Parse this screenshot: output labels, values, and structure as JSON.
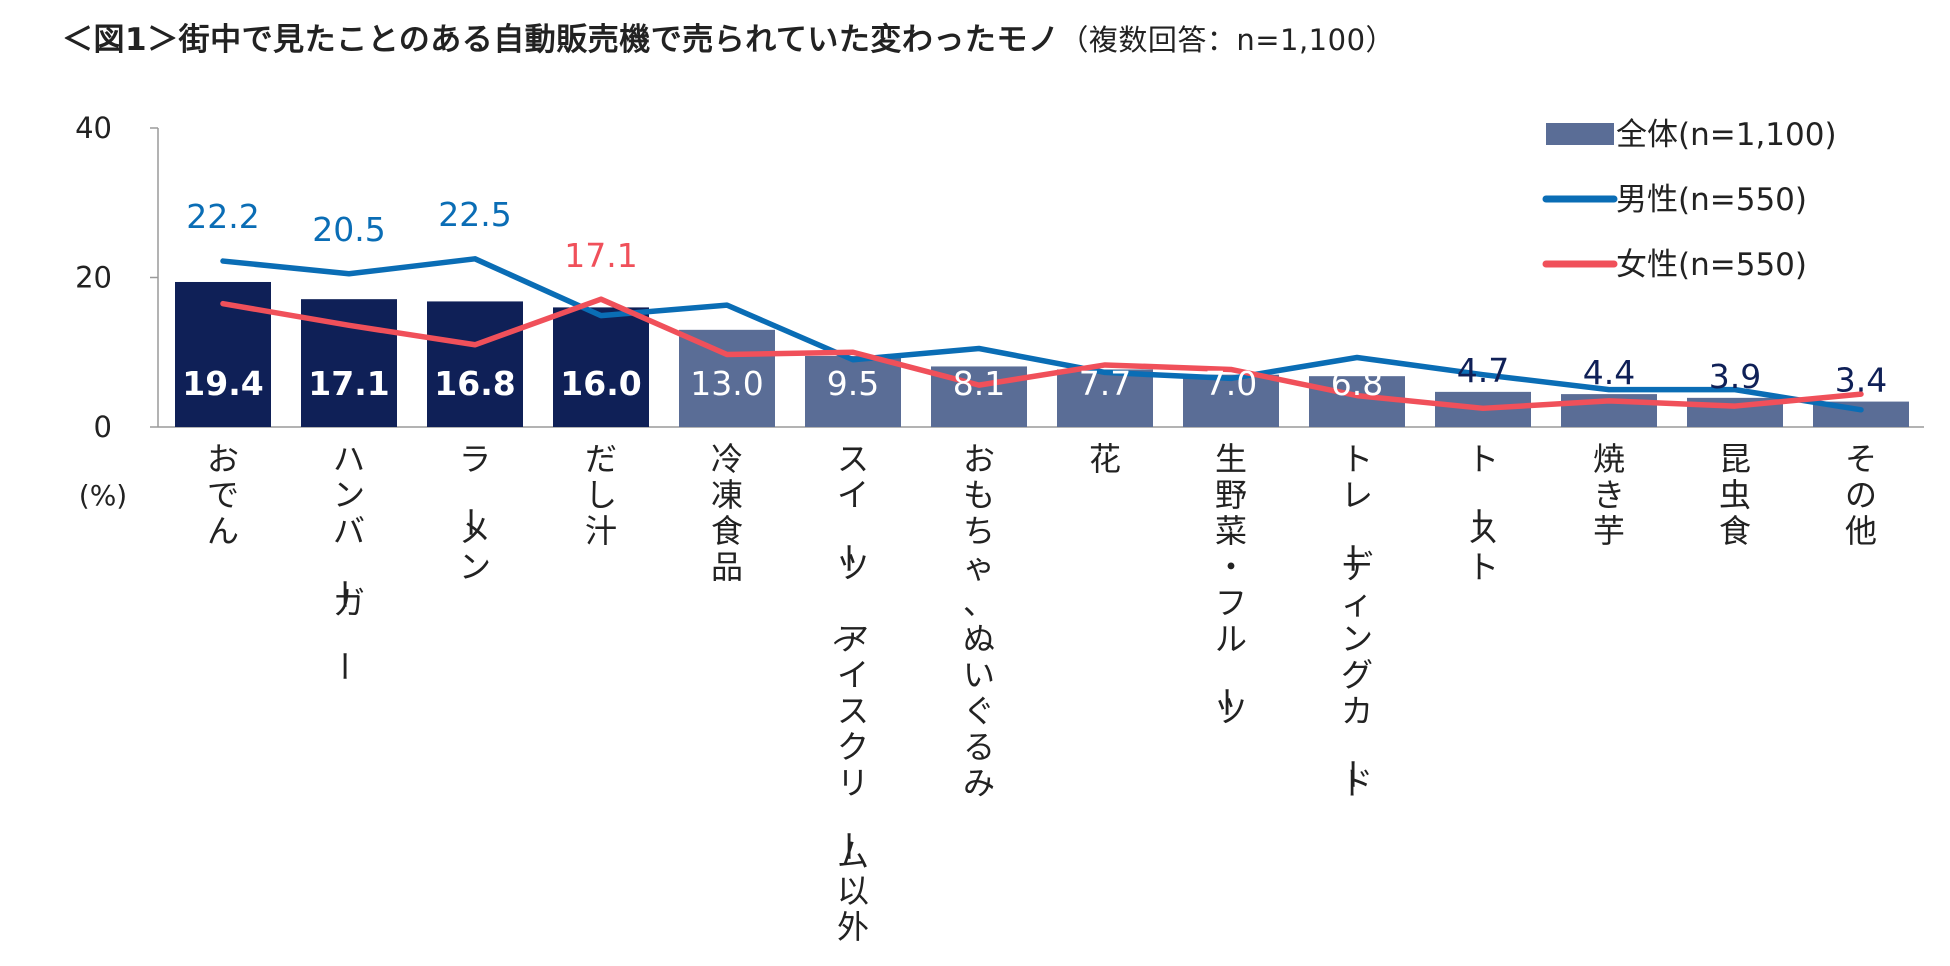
{
  "title": {
    "main": "＜図1＞街中で見たことのある自動販売機で売られていた変わったモノ",
    "sub": "（複数回答：n=1,100）"
  },
  "chart_data": {
    "type": "bar",
    "categories": [
      "おでん",
      "ハンバーガー",
      "ラーメン",
      "だし汁",
      "冷凍食品",
      "スイーツ（アイスクリーム以外）",
      "おもちゃ、ぬいぐるみ",
      "花",
      "生野菜・フルーツ",
      "トレーディングカード",
      "トースト",
      "焼き芋",
      "昆虫食",
      "その他"
    ],
    "series": [
      {
        "name": "全体(n=1,100)",
        "kind": "bar",
        "values": [
          19.4,
          17.1,
          16.8,
          16.0,
          13.0,
          9.5,
          8.1,
          7.7,
          7.0,
          6.8,
          4.7,
          4.4,
          3.9,
          3.4
        ]
      },
      {
        "name": "男性(n=550)",
        "kind": "line",
        "values": [
          22.2,
          20.5,
          22.5,
          14.9,
          16.3,
          9.0,
          10.5,
          7.3,
          6.5,
          9.3,
          7.0,
          5.0,
          5.0,
          2.3
        ]
      },
      {
        "name": "女性(n=550)",
        "kind": "line",
        "values": [
          16.5,
          13.6,
          11.0,
          17.1,
          9.7,
          10.0,
          5.6,
          8.3,
          7.7,
          4.2,
          2.5,
          3.5,
          2.8,
          4.4
        ]
      }
    ],
    "labels": {
      "bar": [
        "19.4",
        "17.1",
        "16.8",
        "16.0",
        "13.0",
        "9.5",
        "8.1",
        "7.7",
        "7.0",
        "6.8",
        "4.7",
        "4.4",
        "3.9",
        "3.4"
      ],
      "male": [
        "22.2",
        "20.5",
        "22.5"
      ],
      "female": [
        "17.1"
      ]
    },
    "highlight_count": 4,
    "ylim": [
      0,
      40
    ],
    "yticks": [
      "0",
      "20",
      "40"
    ],
    "ylabel": "(%)",
    "legend_position": "top-right",
    "colors": {
      "bar_highlight": "#0f2057",
      "bar_normal": "#5a6d96",
      "male": "#0a6db5",
      "female": "#f0505a",
      "axis": "#9a9a9a"
    }
  }
}
